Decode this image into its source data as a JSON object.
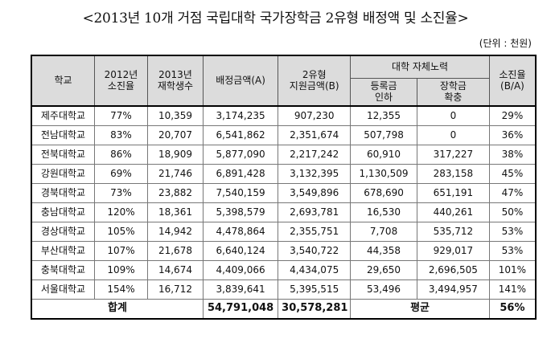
{
  "title": "<2013년 10개 거점 국립대학 국가장학금 2유형 배정액 및 소진율>",
  "unit": "(단위 : 천원)",
  "headers": {
    "school": "학교",
    "rate2012": "2012년\n소진율",
    "students2013": "2013년\n재학생수",
    "allocation": "배정금액(A)",
    "support": "2유형\n지원금액(B)",
    "effort": "대학 자체노력",
    "tuition": "등록금\n인하",
    "scholarship": "장학금\n확충",
    "rate": "소진율\n(B/A)"
  },
  "rows": [
    {
      "school": "제주대학교",
      "rate2012": "77%",
      "students": "10,359",
      "allocation": "3,174,235",
      "support": "907,230",
      "tuition": "12,355",
      "scholarship": "0",
      "rate": "29%"
    },
    {
      "school": "전남대학교",
      "rate2012": "83%",
      "students": "20,707",
      "allocation": "6,541,862",
      "support": "2,351,674",
      "tuition": "507,798",
      "scholarship": "0",
      "rate": "36%"
    },
    {
      "school": "전북대학교",
      "rate2012": "86%",
      "students": "18,909",
      "allocation": "5,877,090",
      "support": "2,217,242",
      "tuition": "60,910",
      "scholarship": "317,227",
      "rate": "38%"
    },
    {
      "school": "강원대학교",
      "rate2012": "69%",
      "students": "21,746",
      "allocation": "6,891,428",
      "support": "3,132,395",
      "tuition": "1,130,509",
      "scholarship": "283,158",
      "rate": "45%"
    },
    {
      "school": "경북대학교",
      "rate2012": "73%",
      "students": "23,882",
      "allocation": "7,540,159",
      "support": "3,549,896",
      "tuition": "678,690",
      "scholarship": "651,191",
      "rate": "47%"
    },
    {
      "school": "충남대학교",
      "rate2012": "120%",
      "students": "18,361",
      "allocation": "5,398,579",
      "support": "2,693,781",
      "tuition": "16,530",
      "scholarship": "440,261",
      "rate": "50%"
    },
    {
      "school": "경상대학교",
      "rate2012": "105%",
      "students": "14,942",
      "allocation": "4,478,864",
      "support": "2,355,751",
      "tuition": "7,708",
      "scholarship": "535,712",
      "rate": "53%"
    },
    {
      "school": "부산대학교",
      "rate2012": "107%",
      "students": "21,678",
      "allocation": "6,640,124",
      "support": "3,540,722",
      "tuition": "44,358",
      "scholarship": "929,017",
      "rate": "53%"
    },
    {
      "school": "충북대학교",
      "rate2012": "109%",
      "students": "14,674",
      "allocation": "4,409,066",
      "support": "4,434,075",
      "tuition": "29,650",
      "scholarship": "2,696,505",
      "rate": "101%"
    },
    {
      "school": "서울대학교",
      "rate2012": "154%",
      "students": "16,712",
      "allocation": "3,839,641",
      "support": "5,395,515",
      "tuition": "53,496",
      "scholarship": "3,494,957",
      "rate": "141%"
    }
  ],
  "footer": {
    "total_label": "합계",
    "total_allocation": "54,791,048",
    "total_support": "30,578,281",
    "average_label": "평균",
    "average_rate": "56%"
  }
}
